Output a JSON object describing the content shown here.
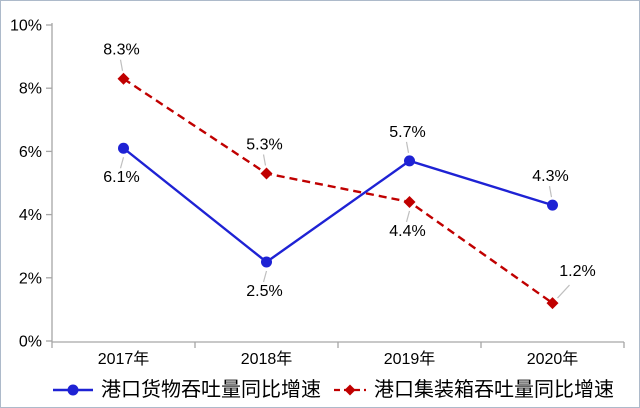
{
  "chart_data": {
    "type": "line",
    "categories": [
      "2017年",
      "2018年",
      "2019年",
      "2020年"
    ],
    "series": [
      {
        "name": "港口货物吞吐量同比增速",
        "color": "#1e22d4",
        "line_style": "solid",
        "marker": "circle",
        "values": [
          6.1,
          2.5,
          5.7,
          4.3
        ],
        "labels": [
          "6.1%",
          "2.5%",
          "5.7%",
          "4.3%"
        ],
        "label_positions": [
          "below",
          "below",
          "above",
          "above"
        ]
      },
      {
        "name": "港口集装箱吞吐量同比增速",
        "color": "#c00000",
        "line_style": "dashed",
        "marker": "diamond",
        "values": [
          8.3,
          5.3,
          4.4,
          1.2
        ],
        "labels": [
          "8.3%",
          "5.3%",
          "4.4%",
          "1.2%"
        ],
        "label_positions": [
          "above",
          "above",
          "below",
          "above-right"
        ]
      }
    ],
    "title": "",
    "xlabel": "",
    "ylabel": "",
    "ylim": [
      0,
      10
    ],
    "y_tick_values": [
      0,
      2,
      4,
      6,
      8,
      10
    ],
    "y_ticks": [
      "0%",
      "2%",
      "4%",
      "6%",
      "8%",
      "10%"
    ],
    "grid": false,
    "legend_position": "bottom",
    "colors": {
      "axis": "#a6a6a6",
      "tick": "#a6a6a6",
      "text": "#000000",
      "leader_line": "#bfbfbf",
      "frame_border": "#adbaca",
      "background": "#ffffff"
    }
  }
}
